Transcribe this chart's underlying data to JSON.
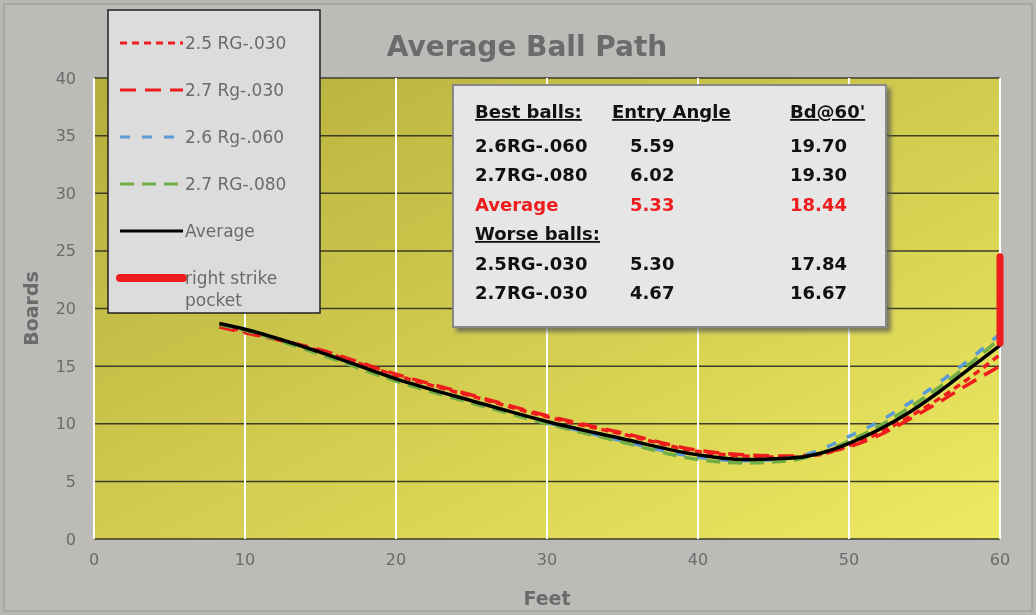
{
  "chart_data": {
    "type": "line",
    "title": "Average Ball Path",
    "xlabel": "Feet",
    "ylabel": "Boards",
    "xlim": [
      0,
      60
    ],
    "xticks": [
      0,
      10,
      20,
      30,
      40,
      50,
      60
    ],
    "ylim": [
      0,
      40
    ],
    "yticks": [
      0,
      5,
      10,
      15,
      20,
      25,
      30,
      35,
      40
    ],
    "grid": true,
    "legend": "top left",
    "annotations": [
      "Best balls:\tEntry Angle\tBd@60'",
      "2.6RG-.060\t5.59\t19.70",
      "2.7RG-.080\t6.02\t19.30",
      "Average\t5.33\t18.44",
      "Worse balls:",
      "2.5RG-.030\t5.30\t17.84",
      "2.7RG-.030\t4.67\t16.67"
    ],
    "x": [
      8.3,
      10,
      15,
      20,
      25,
      30,
      35,
      40,
      43,
      46,
      48,
      50,
      52,
      54,
      56,
      58,
      60
    ],
    "series": [
      {
        "name": "2.5 RG-.030",
        "color": "#ee1c1c",
        "line_style": "dashed",
        "values": [
          18.5,
          18.0,
          16.3,
          14.2,
          12.4,
          10.6,
          9.1,
          7.6,
          7.2,
          7.1,
          7.3,
          8.1,
          9.2,
          10.6,
          12.2,
          14.0,
          16.0
        ]
      },
      {
        "name": "2.7 Rg-.030",
        "color": "#ee1c1c",
        "line_style": "dashed",
        "values": [
          18.4,
          17.9,
          16.4,
          14.3,
          12.5,
          10.7,
          9.2,
          7.7,
          7.3,
          7.2,
          7.4,
          8.0,
          9.0,
          10.4,
          11.9,
          13.5,
          15.0
        ]
      },
      {
        "name": "2.6 Rg-.060",
        "color": "#5b9bd5",
        "line_style": "dashed",
        "values": [
          null,
          null,
          null,
          null,
          null,
          10.1,
          8.5,
          7.1,
          6.8,
          7.0,
          7.7,
          8.9,
          10.2,
          11.8,
          13.6,
          15.6,
          17.8
        ]
      },
      {
        "name": "2.7 RG-.080",
        "color": "#70ad47",
        "line_style": "dashed",
        "values": [
          18.6,
          18.1,
          16.0,
          13.7,
          11.8,
          10.0,
          8.4,
          6.9,
          6.6,
          6.8,
          7.4,
          8.5,
          9.8,
          11.4,
          13.2,
          15.2,
          17.4
        ]
      },
      {
        "name": "Average",
        "color": "#000000",
        "line_style": "solid",
        "values": [
          18.7,
          18.2,
          16.2,
          13.9,
          12.0,
          10.2,
          8.7,
          7.3,
          6.9,
          7.0,
          7.4,
          8.3,
          9.5,
          11.0,
          12.8,
          14.8,
          16.8
        ]
      },
      {
        "name": "right strike pocket",
        "color": "#ee1c1c",
        "line_style": "solid",
        "x": [
          60,
          60
        ],
        "values": [
          17.0,
          24.5
        ]
      }
    ]
  }
}
